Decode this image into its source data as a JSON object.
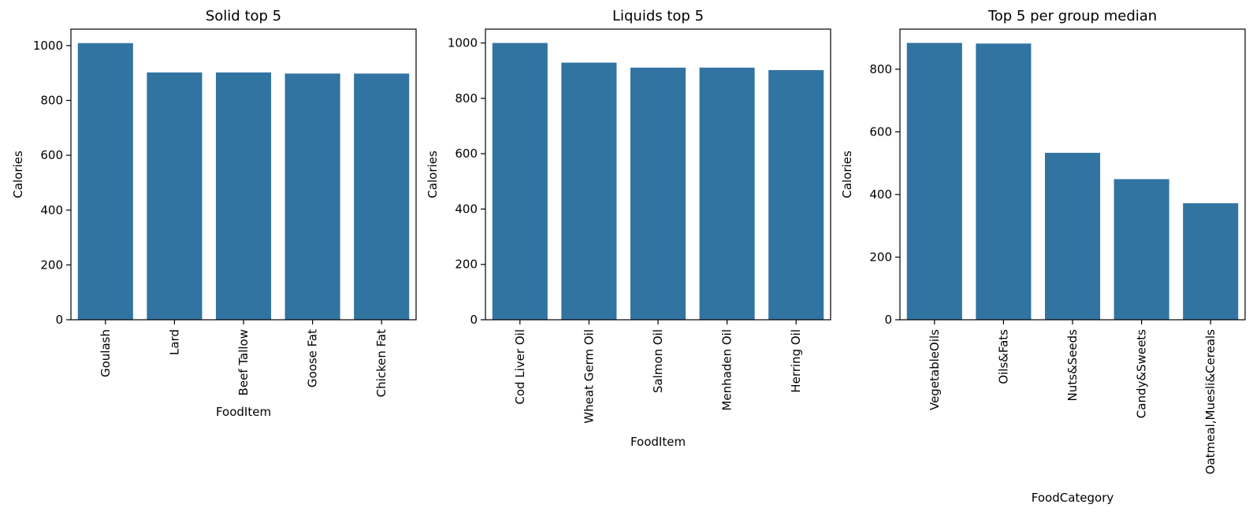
{
  "chart_data": [
    {
      "type": "bar",
      "title": "Solid top 5",
      "xlabel": "FoodItem",
      "ylabel": "Calories",
      "categories": [
        "Goulash",
        "Lard",
        "Beef Tallow",
        "Goose Fat",
        "Chicken Fat"
      ],
      "values": [
        1009,
        902,
        902,
        898,
        898
      ],
      "ylim": [
        0,
        1060
      ],
      "yticks": [
        0,
        200,
        400,
        600,
        800,
        1000
      ],
      "color": "#3274a1",
      "grid": false,
      "legend": "none"
    },
    {
      "type": "bar",
      "title": "Liquids top 5",
      "xlabel": "FoodItem",
      "ylabel": "Calories",
      "categories": [
        "Cod Liver Oil",
        "Wheat Germ Oil",
        "Salmon Oil",
        "Menhaden Oil",
        "Herring Oil"
      ],
      "values": [
        1000,
        929,
        911,
        911,
        902
      ],
      "ylim": [
        0,
        1050
      ],
      "yticks": [
        0,
        200,
        400,
        600,
        800,
        1000
      ],
      "color": "#3274a1",
      "grid": false,
      "legend": "none"
    },
    {
      "type": "bar",
      "title": "Top 5 per group median",
      "xlabel": "FoodCategory",
      "ylabel": "Calories",
      "categories": [
        "VegetableOils",
        "Oils&Fats",
        "Nuts&Seeds",
        "Candy&Sweets",
        "Oatmeal,Muesli&Cereals"
      ],
      "values": [
        884,
        882,
        533,
        449,
        372
      ],
      "ylim": [
        0,
        928
      ],
      "yticks": [
        0,
        200,
        400,
        600,
        800
      ],
      "color": "#3274a1",
      "grid": false,
      "legend": "none"
    }
  ]
}
